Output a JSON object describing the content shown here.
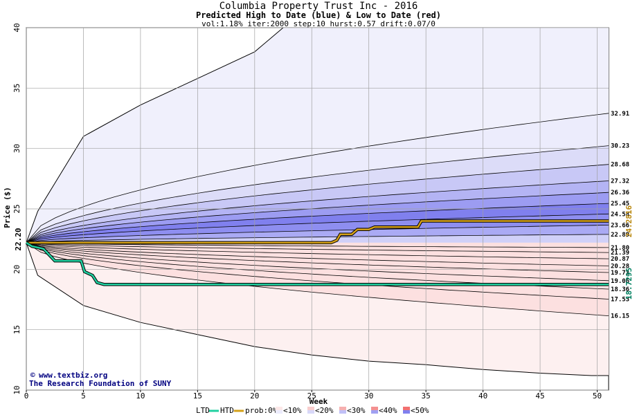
{
  "chart_data": {
    "type": "area",
    "title": "Columbia Property Trust Inc - 2016",
    "subtitle": "Predicted High to Date (blue) &  Low to Date (red)",
    "params": "vol:1.18% iter:2000 step:10 hurst:0.57 drift:0.07/0",
    "xlabel": "Week",
    "ylabel": "Price ($)",
    "xlim": [
      0,
      51
    ],
    "ylim": [
      10,
      40
    ],
    "xticks": [
      0,
      5,
      10,
      15,
      20,
      25,
      30,
      35,
      40,
      45,
      50
    ],
    "yticks": [
      10,
      15,
      20,
      25,
      30,
      35,
      40
    ],
    "start_price": 22.2,
    "start_label": "22.20",
    "high_to_date_label": "24.2816",
    "low_to_date_label": "18.7295",
    "high_levels": [
      {
        "label": "32.91",
        "value": 32.91,
        "color": "#ececfc"
      },
      {
        "label": "30.23",
        "value": 30.23,
        "color": "#dcdcf8"
      },
      {
        "label": "28.68",
        "value": 28.68,
        "color": "#c8c8f6"
      },
      {
        "label": "27.32",
        "value": 27.32,
        "color": "#b4b4f4"
      },
      {
        "label": "26.36",
        "value": 26.36,
        "color": "#9c9cf2"
      },
      {
        "label": "25.45",
        "value": 25.45,
        "color": "#8080ee"
      },
      {
        "label": "24.58",
        "value": 24.58,
        "color": "#8e8ef0"
      },
      {
        "label": "23.66",
        "value": 23.66,
        "color": "#aaaaf4"
      },
      {
        "label": "22.89",
        "value": 22.89,
        "color": "#d0d0f8"
      }
    ],
    "low_levels": [
      {
        "label": "21.80",
        "value": 21.8,
        "color": "#fcecec"
      },
      {
        "label": "21.39",
        "value": 21.39,
        "color": "#f8d8d8"
      },
      {
        "label": "20.87",
        "value": 20.87,
        "color": "#f6bcbc"
      },
      {
        "label": "20.28",
        "value": 20.28,
        "color": "#f49a9a"
      },
      {
        "label": "19.73",
        "value": 19.73,
        "color": "#f28080"
      },
      {
        "label": "19.06",
        "value": 19.06,
        "color": "#f49494"
      },
      {
        "label": "18.36",
        "value": 18.36,
        "color": "#f6b4b4"
      },
      {
        "label": "17.53",
        "value": 17.53,
        "color": "#f8d0d0"
      },
      {
        "label": "16.15",
        "value": 16.15,
        "color": "#fce0e0"
      }
    ],
    "outer_high_values": [
      [
        0,
        22.2
      ],
      [
        1,
        24.8
      ],
      [
        5,
        31.0
      ],
      [
        10,
        33.6
      ],
      [
        15,
        35.8
      ],
      [
        20,
        38.0
      ],
      [
        22.5,
        40.0
      ]
    ],
    "outer_low_values": [
      [
        0,
        22.2
      ],
      [
        1,
        19.5
      ],
      [
        5,
        17.0
      ],
      [
        10,
        15.6
      ],
      [
        15,
        14.6
      ],
      [
        20,
        13.6
      ],
      [
        25,
        12.9
      ],
      [
        30,
        12.4
      ],
      [
        35,
        12.1
      ],
      [
        40,
        11.7
      ],
      [
        45,
        11.4
      ],
      [
        49.5,
        11.2
      ],
      [
        51,
        11.2
      ]
    ],
    "high_to_date_series": [
      [
        0,
        22.2
      ],
      [
        5,
        22.2
      ],
      [
        10,
        22.2
      ],
      [
        20,
        22.2
      ],
      [
        26.7,
        22.2
      ],
      [
        27.2,
        22.4
      ],
      [
        27.5,
        22.9
      ],
      [
        28.5,
        22.9
      ],
      [
        29,
        23.3
      ],
      [
        30,
        23.3
      ],
      [
        30.5,
        23.5
      ],
      [
        34.3,
        23.5
      ],
      [
        34.6,
        24.0
      ],
      [
        40,
        24.0
      ],
      [
        50,
        24.0
      ],
      [
        51,
        24.0
      ]
    ],
    "low_to_date_series": [
      [
        0,
        22.2
      ],
      [
        0.5,
        21.9
      ],
      [
        1.5,
        21.7
      ],
      [
        2.0,
        21.2
      ],
      [
        2.5,
        20.7
      ],
      [
        4.8,
        20.7
      ],
      [
        5.1,
        19.8
      ],
      [
        5.8,
        19.5
      ],
      [
        6.2,
        18.9
      ],
      [
        6.8,
        18.75
      ],
      [
        51,
        18.75
      ]
    ],
    "legend": {
      "ltd_label": "LTD",
      "htd_label": "HTD",
      "ltd_color": "#20d0a0",
      "htd_color": "#d4a017",
      "prob_label": "prob:0%",
      "bins": [
        "<10%",
        "<20%",
        "<30%",
        "<40%",
        "<50%"
      ],
      "bin_colors": [
        [
          "#fce8e8",
          "#ececfc"
        ],
        [
          "#f8cccc",
          "#d8d8f8"
        ],
        [
          "#f6b0b0",
          "#c0c0f6"
        ],
        [
          "#f49090",
          "#a0a0f2"
        ],
        [
          "#f27070",
          "#8080ee"
        ]
      ]
    },
    "grid": true
  },
  "credits": {
    "site": "www.textbiz.org",
    "org": "The Research Foundation of SUNY"
  },
  "colors": {
    "background": "#ffffff",
    "grid": "#a0a0a0",
    "start_label": "#006400",
    "htd_label": "#b8860b",
    "ltd_label": "#008060"
  }
}
